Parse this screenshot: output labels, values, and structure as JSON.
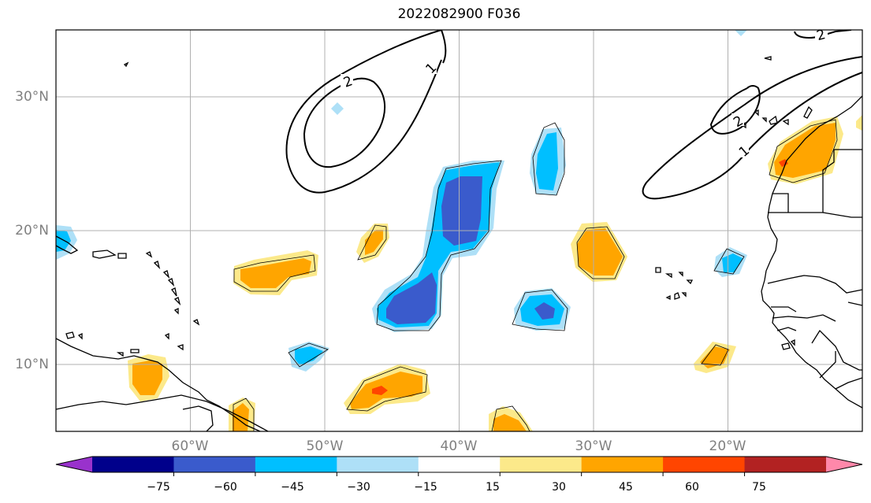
{
  "title": "2022082900 F036",
  "map": {
    "lat_ticks": [
      "30°N",
      "20°N",
      "10°N"
    ],
    "lon_ticks": [
      "60°W",
      "50°W",
      "40°W",
      "30°W",
      "20°W"
    ],
    "lat_range": [
      5,
      35
    ],
    "lon_range": [
      -70,
      -10
    ],
    "gridlines": true
  },
  "contours": {
    "color": "#000000",
    "levels": [
      1,
      2
    ],
    "labels": [
      "2",
      "1",
      "2",
      "1",
      "2"
    ]
  },
  "colorbar": {
    "colors": [
      "#9932cc",
      "#00008b",
      "#3a5bcc",
      "#00bfff",
      "#aee0f7",
      "#ffffff",
      "#fce98a",
      "#ffa500",
      "#ff4500",
      "#b22222",
      "#ff88aa"
    ],
    "ticks": [
      "−75",
      "−60",
      "−45",
      "−30",
      "−15",
      "15",
      "30",
      "45",
      "60",
      "75"
    ],
    "extend": "both"
  }
}
